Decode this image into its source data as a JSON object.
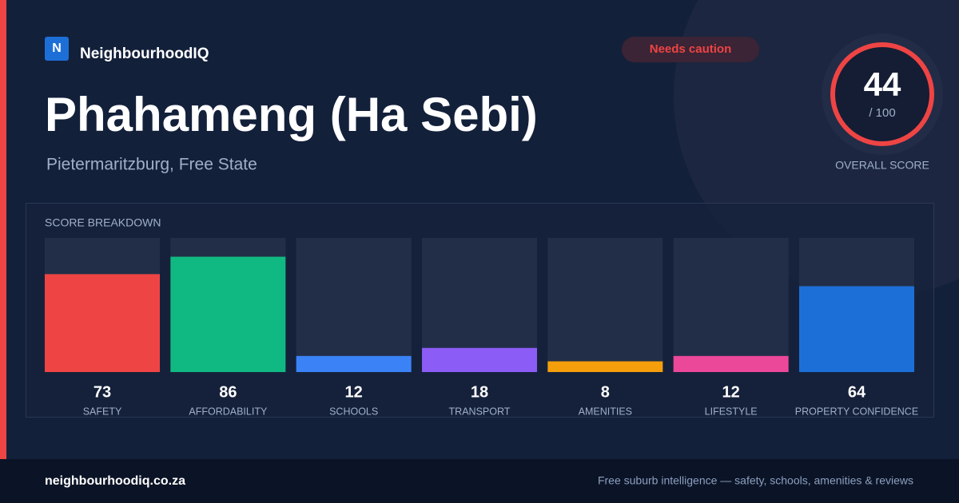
{
  "brand": {
    "logo": "N",
    "name": "NeighbourhoodIQ"
  },
  "badge": "Needs caution",
  "title": "Phahameng (Ha Sebi)",
  "location": "Pietermaritzburg, Free State",
  "score": {
    "value": 44,
    "out_of": "/ 100",
    "label": "OVERALL SCORE"
  },
  "chart_data": {
    "type": "bar",
    "title": "SCORE BREAKDOWN",
    "categories": [
      "SAFETY",
      "AFFORDABILITY",
      "SCHOOLS",
      "TRANSPORT",
      "AMENITIES",
      "LIFESTYLE",
      "PROPERTY CONFIDENCE"
    ],
    "values": [
      73,
      86,
      12,
      18,
      8,
      12,
      64
    ],
    "colors": [
      "#ef4444",
      "#10b981",
      "#3b82f6",
      "#8b5cf6",
      "#f59e0b",
      "#ec4899",
      "#1d6fd8"
    ],
    "ylim": [
      0,
      100
    ]
  },
  "footer": {
    "url": "neighbourhoodiq.co.za",
    "tagline": "Free suburb intelligence — safety, schools, amenities & reviews"
  }
}
